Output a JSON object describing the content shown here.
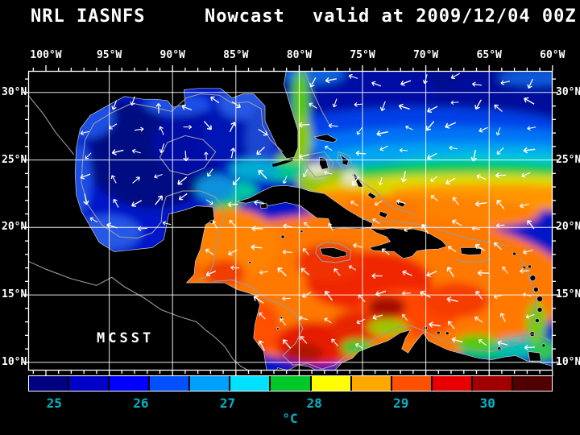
{
  "title": {
    "model": "NRL IASNFS",
    "product": "Nowcast",
    "valid": "valid at 2009/12/04 00Z"
  },
  "axes": {
    "lon_labels": [
      {
        "text": "100°W",
        "lon": -100
      },
      {
        "text": "95°W",
        "lon": -95
      },
      {
        "text": "90°W",
        "lon": -90
      },
      {
        "text": "85°W",
        "lon": -85
      },
      {
        "text": "80°W",
        "lon": -80
      },
      {
        "text": "75°W",
        "lon": -75
      },
      {
        "text": "70°W",
        "lon": -70
      },
      {
        "text": "65°W",
        "lon": -65
      },
      {
        "text": "60°W",
        "lon": -60
      }
    ],
    "lat_labels": [
      {
        "text": "30°N",
        "lat": 30
      },
      {
        "text": "25°N",
        "lat": 25
      },
      {
        "text": "20°N",
        "lat": 20
      },
      {
        "text": "15°N",
        "lat": 15
      },
      {
        "text": "10°N",
        "lat": 10
      }
    ]
  },
  "map": {
    "watermark": "MCSST",
    "land_color": "#000000",
    "coastline_color": "#c8c8c8",
    "contour_color": "#9b9b9b",
    "grid_color": "#ffffff",
    "vector_color": "#ffffff"
  },
  "colorbar": {
    "unit": "°C",
    "min": 24.7,
    "max": 30.75,
    "label_color": "#00B4C8",
    "ticks": [
      {
        "label": "25",
        "value": 25
      },
      {
        "label": "26",
        "value": 26
      },
      {
        "label": "27",
        "value": 27
      },
      {
        "label": "28",
        "value": 28
      },
      {
        "label": "29",
        "value": 29
      },
      {
        "label": "30",
        "value": 30
      }
    ],
    "colors": [
      "#000080",
      "#0000C8",
      "#0000FF",
      "#0050FF",
      "#00A0FF",
      "#00E0FF",
      "#00C828",
      "#FFFF00",
      "#FFA800",
      "#FF5000",
      "#E80000",
      "#A00000",
      "#500000"
    ]
  }
}
